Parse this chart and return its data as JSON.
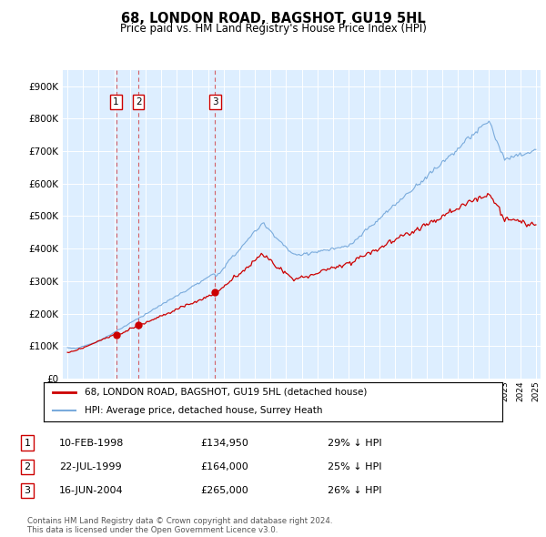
{
  "title": "68, LONDON ROAD, BAGSHOT, GU19 5HL",
  "subtitle": "Price paid vs. HM Land Registry's House Price Index (HPI)",
  "sale_dates_num": [
    1998.11,
    1999.55,
    2004.45
  ],
  "sale_prices": [
    134950,
    164000,
    265000
  ],
  "sale_labels": [
    "1",
    "2",
    "3"
  ],
  "legend_line1": "68, LONDON ROAD, BAGSHOT, GU19 5HL (detached house)",
  "legend_line2": "HPI: Average price, detached house, Surrey Heath",
  "table_rows": [
    [
      "1",
      "10-FEB-1998",
      "£134,950",
      "29% ↓ HPI"
    ],
    [
      "2",
      "22-JUL-1999",
      "£164,000",
      "25% ↓ HPI"
    ],
    [
      "3",
      "16-JUN-2004",
      "£265,000",
      "26% ↓ HPI"
    ]
  ],
  "footer": "Contains HM Land Registry data © Crown copyright and database right 2024.\nThis data is licensed under the Open Government Licence v3.0.",
  "hpi_color": "#7aabdc",
  "price_color": "#cc0000",
  "plot_bg": "#ddeeff",
  "ylim": [
    0,
    950000
  ],
  "yticks": [
    0,
    100000,
    200000,
    300000,
    400000,
    500000,
    600000,
    700000,
    800000,
    900000
  ],
  "xlim_start": 1994.7,
  "xlim_end": 2025.3
}
